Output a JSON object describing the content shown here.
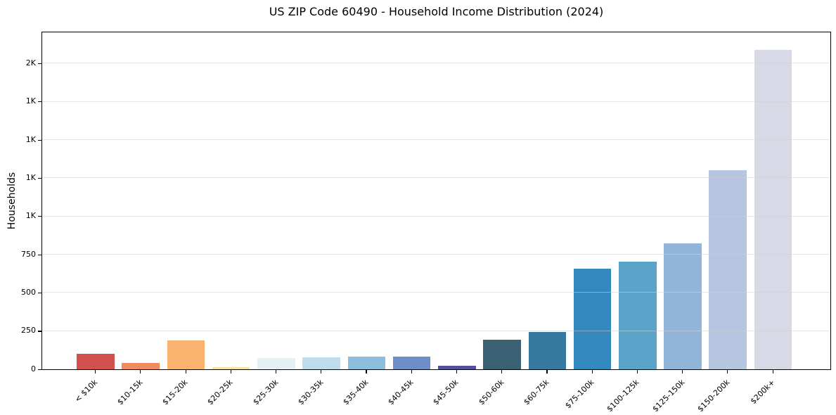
{
  "chart_data": {
    "type": "bar",
    "title": "US ZIP Code 60490 - Household Income Distribution (2024)",
    "xlabel": "",
    "ylabel": "Households",
    "ylim": [
      0,
      2200
    ],
    "grid": true,
    "legend_position": "none",
    "categories": [
      "< $10k",
      "$10-15k",
      "$15-20k",
      "$20-25k",
      "$25-30k",
      "$30-35k",
      "$35-40k",
      "$40-45k",
      "$45-50k",
      "$50-60k",
      "$60-75k",
      "$75-100k",
      "$100-125k",
      "$125-150k",
      "$150-200k",
      "$200k+"
    ],
    "values": [
      100,
      40,
      190,
      15,
      75,
      80,
      85,
      82,
      25,
      195,
      245,
      660,
      705,
      825,
      1300,
      2090
    ],
    "bar_colors": [
      "#d3514c",
      "#f18a5f",
      "#fab36e",
      "#f4e3a2",
      "#e4f0f6",
      "#bddcec",
      "#8dbddd",
      "#6d8ec7",
      "#52509f",
      "#3a6073",
      "#35799e",
      "#3389bd",
      "#5ba4c9",
      "#90b5d9",
      "#b6c5e0",
      "#d7d9e7"
    ],
    "yticks": [
      {
        "value": 0,
        "label": "0"
      },
      {
        "value": 250,
        "label": "250"
      },
      {
        "value": 500,
        "label": "500"
      },
      {
        "value": 750,
        "label": "750"
      },
      {
        "value": 1000,
        "label": "1K"
      },
      {
        "value": 1250,
        "label": "1K"
      },
      {
        "value": 1500,
        "label": "1K"
      },
      {
        "value": 1750,
        "label": "1K"
      },
      {
        "value": 2000,
        "label": "2K"
      }
    ]
  },
  "colors": {
    "background": "#ffffff",
    "axis": "#000000",
    "grid": "#e3e3e3",
    "text": "#000000"
  }
}
